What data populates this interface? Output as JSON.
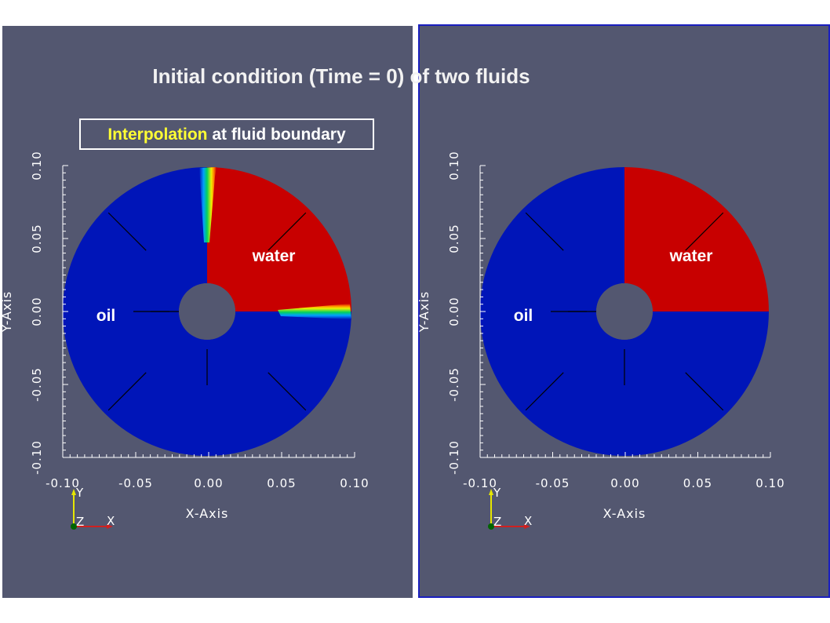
{
  "title": "Initial condition (Time = 0) of two fluids",
  "annotation": {
    "highlight": "Interpolation",
    "rest": " at fluid boundary"
  },
  "panels": [
    {
      "id": "left",
      "water_label": "water",
      "oil_label": "oil",
      "interpolated": true
    },
    {
      "id": "right",
      "water_label": "water",
      "oil_label": "oil",
      "interpolated": false
    }
  ],
  "axes": {
    "x_title": "X-Axis",
    "y_title": "Y-Axis",
    "x_ticks": [
      "-0.10",
      "-0.05",
      "0.00",
      "0.05",
      "0.10"
    ],
    "y_ticks": [
      "0.10",
      "0.05",
      "0.00",
      "-0.05",
      "-0.10"
    ],
    "range": [
      -0.1,
      0.1
    ]
  },
  "orientation": {
    "y": "Y",
    "z": "Z",
    "x": "X"
  },
  "colors": {
    "background": "#535770",
    "oil": "#0015b8",
    "water": "#c80000",
    "title": "#f2f2f2",
    "highlight": "#ffff33"
  }
}
